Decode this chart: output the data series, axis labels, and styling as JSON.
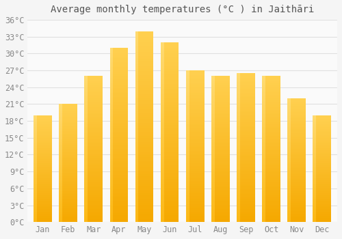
{
  "title": "Average monthly temperatures (°C ) in Jaithāri",
  "months": [
    "Jan",
    "Feb",
    "Mar",
    "Apr",
    "May",
    "Jun",
    "Jul",
    "Aug",
    "Sep",
    "Oct",
    "Nov",
    "Dec"
  ],
  "values": [
    19,
    21,
    26,
    31,
    34,
    32,
    27,
    26,
    26.5,
    26,
    22,
    19
  ],
  "bar_color_bottom": "#F5A800",
  "bar_color_top": "#FFD050",
  "bar_color_highlight": "#FFE080",
  "ylim": [
    0,
    36
  ],
  "ytick_step": 3,
  "background_color": "#F5F5F5",
  "plot_bg_color": "#FAFAFA",
  "grid_color": "#E0E0E0",
  "title_fontsize": 10,
  "tick_fontsize": 8.5,
  "tick_color": "#888888",
  "title_color": "#555555"
}
